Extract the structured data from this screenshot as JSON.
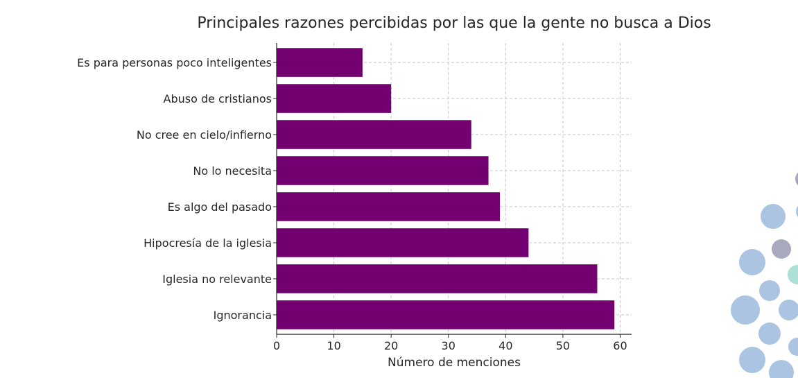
{
  "chart_data": {
    "type": "bar",
    "orientation": "horizontal",
    "title": "Principales razones percibidas por las que la gente no busca a Dios",
    "xlabel": "Número de menciones",
    "ylabel": "",
    "categories": [
      "Es para personas poco inteligentes",
      "Abuso de cristianos",
      "No cree en cielo/infierno",
      "No lo necesita",
      "Es algo del pasado",
      "Hipocresía de la iglesia",
      "Iglesia no relevante",
      "Ignorancia"
    ],
    "values": [
      15,
      20,
      34,
      37,
      39,
      44,
      56,
      59
    ],
    "xlim": [
      0,
      62
    ],
    "xticks": [
      0,
      10,
      20,
      30,
      40,
      50,
      60
    ],
    "grid": true,
    "bar_color": "#730071"
  },
  "decoration": {
    "dot_colors": [
      "#aac4e2",
      "#a9a9c0",
      "#ace0d6"
    ]
  }
}
